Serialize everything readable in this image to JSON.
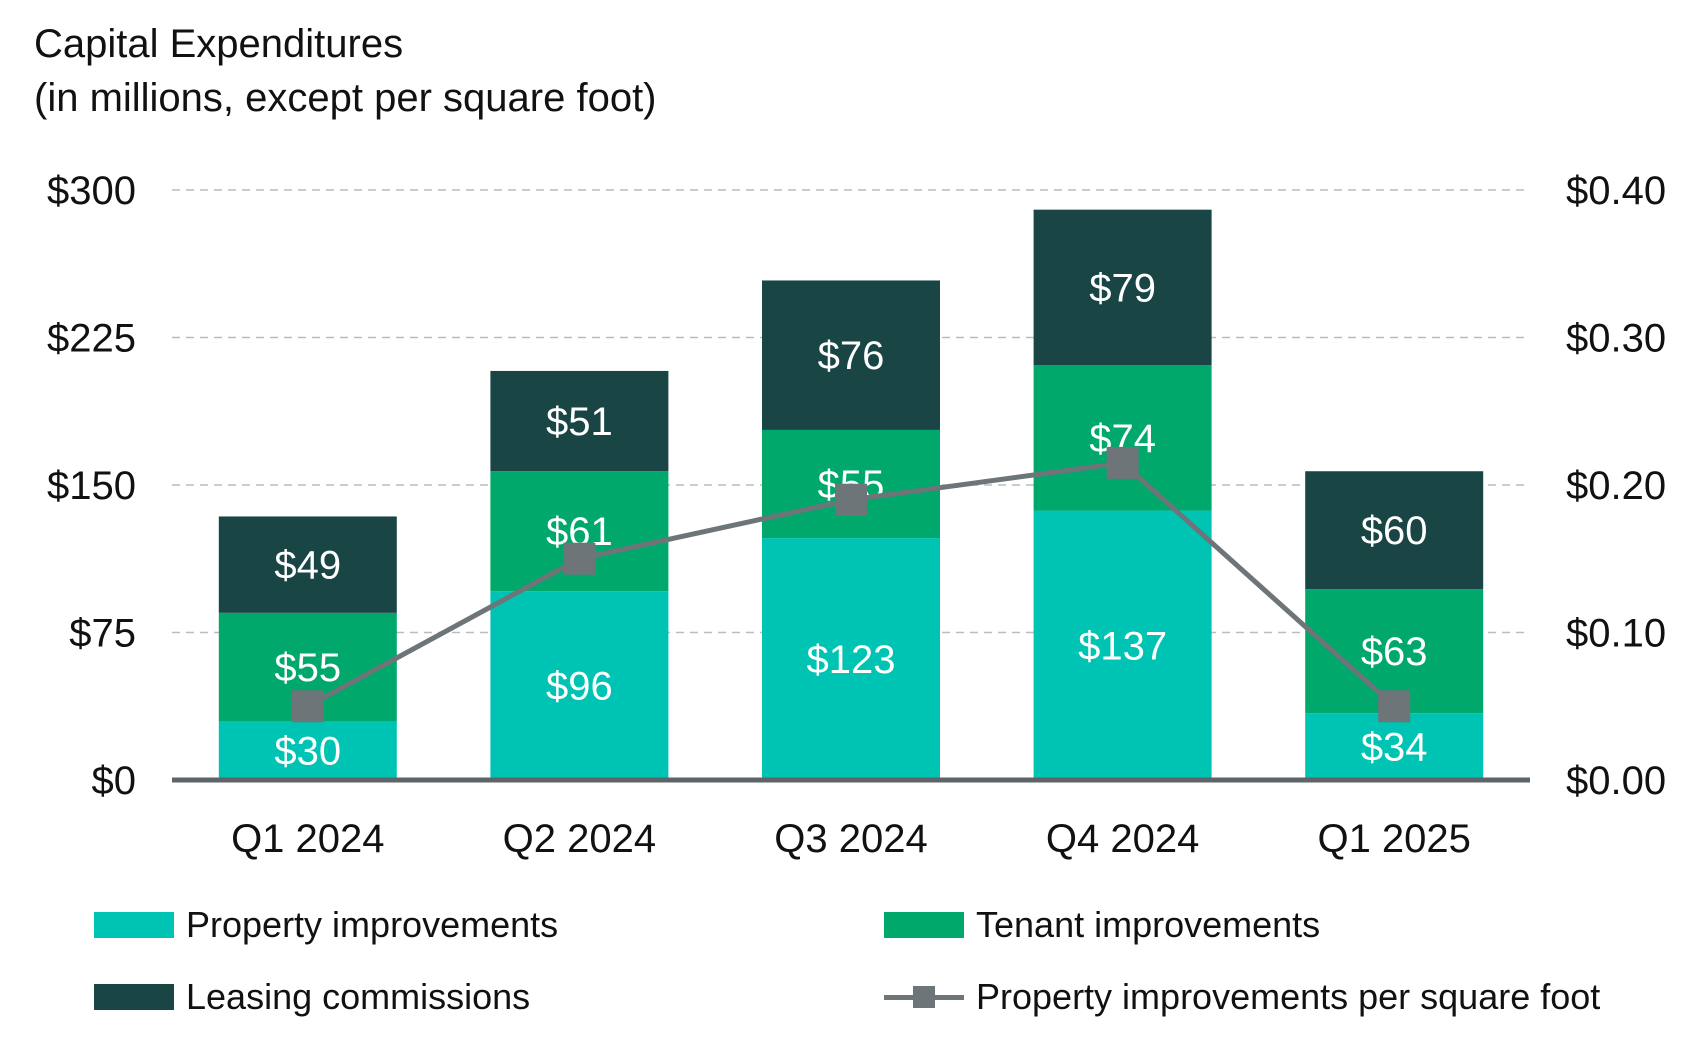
{
  "title_line1": "Capital Expenditures",
  "title_line2": "(in millions, except per square foot)",
  "chart_data": {
    "type": "bar",
    "stacked": true,
    "categories": [
      "Q1 2024",
      "Q2 2024",
      "Q3 2024",
      "Q4 2024",
      "Q1 2025"
    ],
    "series": [
      {
        "name": "Property improvements",
        "values": [
          30,
          96,
          123,
          137,
          34
        ],
        "labels": [
          "$30",
          "$96",
          "$123",
          "$137",
          "$34"
        ],
        "color": "#00C4B3"
      },
      {
        "name": "Tenant improvements",
        "values": [
          55,
          61,
          55,
          74,
          63
        ],
        "labels": [
          "$55",
          "$61",
          "$55",
          "$74",
          "$63"
        ],
        "color": "#00A86B"
      },
      {
        "name": "Leasing commissions",
        "values": [
          49,
          51,
          76,
          79,
          60
        ],
        "labels": [
          "$49",
          "$51",
          "$76",
          "$79",
          "$60"
        ],
        "color": "#1A4545"
      }
    ],
    "line_series": {
      "name": "Property improvements per square foot",
      "values": [
        0.05,
        0.15,
        0.19,
        0.215,
        0.05
      ],
      "color": "#6D7579",
      "axis": "right"
    },
    "ylim": [
      0,
      300
    ],
    "y_ticks": [
      0,
      75,
      150,
      225,
      300
    ],
    "y_tick_labels": [
      "$0",
      "$75",
      "$150",
      "$225",
      "$300"
    ],
    "y2lim": [
      0,
      0.4
    ],
    "y2_tick_labels": [
      "$0.00",
      "$0.10",
      "$0.20",
      "$0.30",
      "$0.40"
    ],
    "gridlines": "dashed horizontal",
    "legend_position": "bottom"
  }
}
